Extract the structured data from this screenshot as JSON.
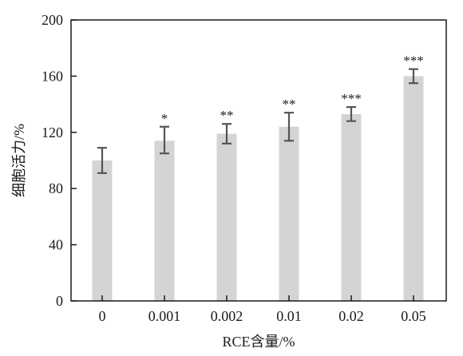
{
  "chart_data": {
    "type": "bar",
    "xlabel": "RCE含量/%",
    "ylabel": "细胞活力/%",
    "ylim": [
      0,
      200
    ],
    "yticks": [
      0,
      40,
      80,
      120,
      160,
      200
    ],
    "grid": false,
    "categories": [
      "0",
      "0.001",
      "0.002",
      "0.01",
      "0.02",
      "0.05"
    ],
    "values": [
      100,
      114,
      119,
      124,
      133,
      160
    ],
    "error_low": [
      91,
      105,
      112,
      114,
      128,
      155
    ],
    "error_high": [
      109,
      124,
      126,
      134,
      138,
      165
    ],
    "significance": [
      "",
      "*",
      "**",
      "**",
      "***",
      "***"
    ],
    "colors": {
      "bar": "#d4d4d4",
      "error": "#555555",
      "axis": "#1a1a1a"
    }
  }
}
